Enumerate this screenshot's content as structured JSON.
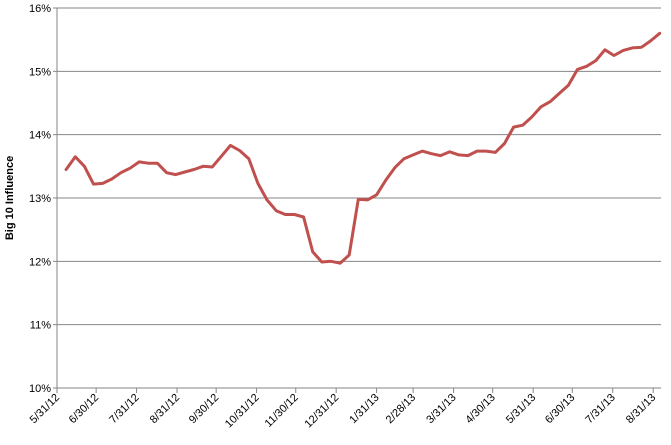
{
  "chart_data": {
    "type": "line",
    "y_label": "Big 10 Influence",
    "x": [
      "6/7/12",
      "6/14/12",
      "6/21/12",
      "6/28/12",
      "7/5/12",
      "7/12/12",
      "7/19/12",
      "7/26/12",
      "8/2/12",
      "8/9/12",
      "8/16/12",
      "8/23/12",
      "8/30/12",
      "9/6/12",
      "9/13/12",
      "9/20/12",
      "9/27/12",
      "10/4/12",
      "10/11/12",
      "10/18/12",
      "10/25/12",
      "11/1/12",
      "11/8/12",
      "11/15/12",
      "11/22/12",
      "11/29/12",
      "12/6/12",
      "12/13/12",
      "12/20/12",
      "12/27/12",
      "1/3/13",
      "1/10/13",
      "1/17/13",
      "1/24/13",
      "1/31/13",
      "2/7/13",
      "2/14/13",
      "2/21/13",
      "2/28/13",
      "3/7/13",
      "3/14/13",
      "3/21/13",
      "3/28/13",
      "4/4/13",
      "4/11/13",
      "4/18/13",
      "4/25/13",
      "5/2/13",
      "5/9/13",
      "5/16/13",
      "5/23/13",
      "5/30/13",
      "6/6/13",
      "6/13/13",
      "6/20/13",
      "6/27/13",
      "7/4/13",
      "7/11/13",
      "7/18/13",
      "7/25/13",
      "8/1/13",
      "8/8/13",
      "8/15/13",
      "8/22/13",
      "8/29/13",
      "9/5/13"
    ],
    "series": [
      {
        "color": "#c0504d",
        "values": [
          13.45,
          13.65,
          13.5,
          13.22,
          13.23,
          13.3,
          13.4,
          13.47,
          13.57,
          13.55,
          13.55,
          13.4,
          13.37,
          13.41,
          13.45,
          13.5,
          13.49,
          13.66,
          13.83,
          13.75,
          13.62,
          13.23,
          12.97,
          12.8,
          12.74,
          12.74,
          12.7,
          12.15,
          11.99,
          12.0,
          11.97,
          12.1,
          12.98,
          12.97,
          13.05,
          13.28,
          13.48,
          13.62,
          13.68,
          13.74,
          13.7,
          13.67,
          13.73,
          13.68,
          13.67,
          13.74,
          13.74,
          13.72,
          13.86,
          14.12,
          14.15,
          14.28,
          14.44,
          14.52,
          14.65,
          14.78,
          15.03,
          15.08,
          15.17,
          15.34,
          15.25,
          15.33,
          15.37,
          15.38,
          15.48,
          15.6
        ]
      }
    ],
    "xlim": [
      "5/31/12",
      "9/6/13"
    ],
    "xticks": [
      "5/31/12",
      "6/30/12",
      "7/31/12",
      "8/31/12",
      "9/30/12",
      "10/31/12",
      "11/30/12",
      "12/31/12",
      "1/31/13",
      "2/28/13",
      "3/31/13",
      "4/30/13",
      "5/31/13",
      "6/30/13",
      "7/31/13",
      "8/31/13"
    ],
    "ylim": [
      10,
      16
    ],
    "yticks": [
      {
        "value": 10,
        "label": "10%"
      },
      {
        "value": 11,
        "label": "11%"
      },
      {
        "value": 12,
        "label": "12%"
      },
      {
        "value": 13,
        "label": "13%"
      },
      {
        "value": 14,
        "label": "14%"
      },
      {
        "value": 15,
        "label": "15%"
      },
      {
        "value": 16,
        "label": "16%"
      }
    ],
    "grid": true
  }
}
